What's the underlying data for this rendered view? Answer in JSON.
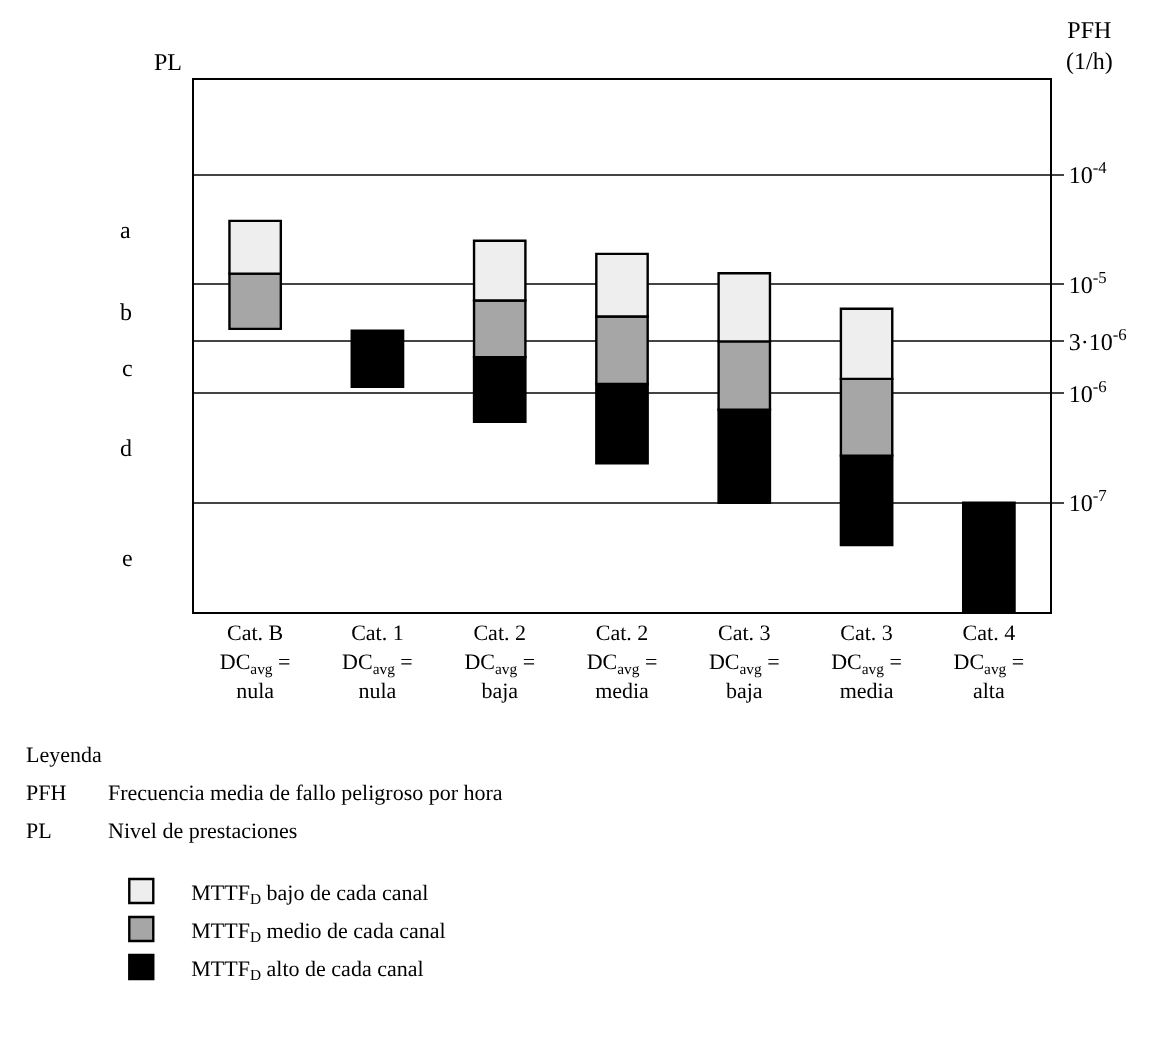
{
  "chart_data": {
    "type": "bar",
    "log": true,
    "categories": [
      "Cat. B\nDC$_{avg}$ =\nnula",
      "Cat. 1\nDC$_{avg}$ =\nnula",
      "Cat. 2\nDC$_{avg}$ =\nbaja",
      "Cat. 2\nDC$_{avg}$ =\nmedia",
      "Cat. 3\nDC$_{avg}$ =\nbaja",
      "Cat. 3\nDC$_{avg}$ =\nmedia",
      "Cat. 4\nDC$_{avg}$ =\nalta"
    ],
    "series": [
      {
        "name": "MTTF$_{D}$ alto de cada canal",
        "color": "#000000",
        "base": [
          null,
          1.15e-06,
          5.5e-07,
          2.3e-07,
          1e-07,
          4.1e-08,
          1e-08
        ],
        "values": [
          null,
          2.6e-06,
          1.6e-06,
          9.9e-07,
          6.1e-07,
          2.29e-07,
          9e-08
        ]
      },
      {
        "name": "MTTF$_{D}$ medio de cada canal",
        "color": "#a6a6a6",
        "base": [
          3.9e-06,
          null,
          2.15e-06,
          1.22e-06,
          7.1e-07,
          2.7e-07,
          null
        ],
        "values": [
          8.6e-06,
          null,
          4.95e-06,
          3.85e-06,
          2.29e-06,
          1.09e-06,
          null
        ]
      },
      {
        "name": "MTTF$_{D}$ bajo de cada canal",
        "color": "#eeeeee",
        "base": [
          1.25e-05,
          null,
          7.1e-06,
          5.07e-06,
          3e-06,
          1.36e-06,
          null
        ],
        "values": [
          2.55e-05,
          null,
          1.79e-05,
          1.39e-05,
          9.6e-06,
          4.6e-06,
          null
        ]
      }
    ],
    "ylabel": "PFH\n(1/h)",
    "ylim": [
      1e-08,
      0.00074
    ],
    "yticks": [
      {
        "value": 0.0001,
        "label": "10$^{-4}$"
      },
      {
        "value": 1e-05,
        "label": "10$^{-5}$"
      },
      {
        "value": 3e-06,
        "label": "3·10$^{-6}$"
      },
      {
        "value": 1e-06,
        "label": "10$^{-6}$"
      },
      {
        "value": 1e-07,
        "label": "10$^{-7}$"
      }
    ],
    "grid": "y",
    "legend": "bottom left",
    "annotations": [
      "PL",
      "a",
      "b",
      "c",
      "d",
      "e",
      "Leyenda",
      "PFH",
      "Frecuencia media de fallo peligroso por hora",
      "PL",
      "Nivel de prestaciones"
    ]
  }
}
